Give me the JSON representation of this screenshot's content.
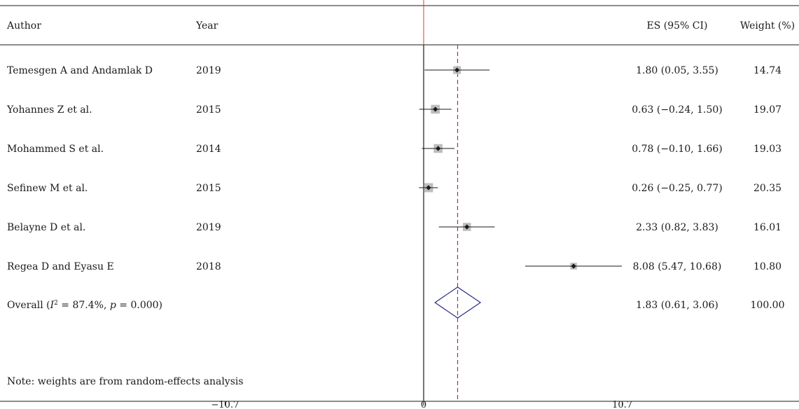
{
  "chart_data": {
    "type": "forest",
    "columns": {
      "author": "Author",
      "year": "Year",
      "es": "ES (95% CI)",
      "weight": "Weight (%)"
    },
    "xlim": [
      -12,
      17.5
    ],
    "x_ticks": [
      {
        "value": -10.7,
        "label": "−10.7"
      },
      {
        "value": 0,
        "label": "0"
      },
      {
        "value": 10.7,
        "label": "10.7"
      }
    ],
    "null_line": 0,
    "studies": [
      {
        "author": "Temesgen A and Andamlak D",
        "year": "2019",
        "es": 1.8,
        "lower": 0.05,
        "upper": 3.55,
        "es_label": "1.80 (0.05, 3.55)",
        "weight": 14.74,
        "weight_label": "14.74"
      },
      {
        "author": "Yohannes Z et al.",
        "year": "2015",
        "es": 0.63,
        "lower": -0.24,
        "upper": 1.5,
        "es_label": "0.63 (−0.24, 1.50)",
        "weight": 19.07,
        "weight_label": "19.07"
      },
      {
        "author": "Mohammed S et al.",
        "year": "2014",
        "es": 0.78,
        "lower": -0.1,
        "upper": 1.66,
        "es_label": "0.78 (−0.10, 1.66)",
        "weight": 19.03,
        "weight_label": "19.03"
      },
      {
        "author": "Sefinew M et al.",
        "year": "2015",
        "es": 0.26,
        "lower": -0.25,
        "upper": 0.77,
        "es_label": "0.26 (−0.25, 0.77)",
        "weight": 20.35,
        "weight_label": "20.35"
      },
      {
        "author": "Belayne D et al.",
        "year": "2019",
        "es": 2.33,
        "lower": 0.82,
        "upper": 3.83,
        "es_label": "2.33 (0.82, 3.83)",
        "weight": 16.01,
        "weight_label": "16.01"
      },
      {
        "author": "Regea D and Eyasu E",
        "year": "2018",
        "es": 8.08,
        "lower": 5.47,
        "upper": 10.68,
        "es_label": "8.08 (5.47, 10.68)",
        "weight": 10.8,
        "weight_label": "10.80"
      }
    ],
    "overall": {
      "label_prefix": "Overall (",
      "i_symbol": "I",
      "i_sup": "2",
      "i_value": " = 87.4%, ",
      "p_symbol": "p",
      "p_value": " = 0.000)",
      "es": 1.83,
      "lower": 0.61,
      "upper": 3.06,
      "es_label": "1.83 (0.61, 3.06)",
      "weight_label": "100.00"
    },
    "note": "Note: weights are from random-effects analysis",
    "colors": {
      "null_line": "#1a1a1a",
      "overall_line": "#b03030",
      "diamond": "#2a2a8a",
      "weight_box": "#bdbdbd",
      "point": "#1a1a1a",
      "top_marker": "#e03a2a"
    }
  }
}
